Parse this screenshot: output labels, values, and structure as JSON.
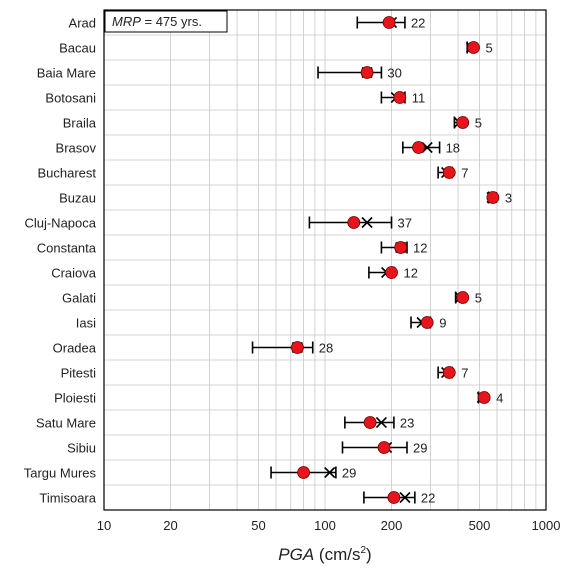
{
  "chart_data": {
    "type": "scatter",
    "annotation": {
      "italic": "MRP",
      "rest": " = 475 yrs."
    },
    "xlabel": {
      "italic": "PGA",
      "rest": " (cm/s",
      "sup": "2",
      "close": ")"
    },
    "xscale": "log",
    "xlim": [
      10,
      1000
    ],
    "x_ticks": [
      10,
      20,
      50,
      100,
      200,
      500,
      1000
    ],
    "grid": true,
    "marker_color": "#e8141c",
    "cities": [
      {
        "name": "Arad",
        "circle": 195,
        "cross": 200,
        "lo": 140,
        "hi": 230,
        "label": "22"
      },
      {
        "name": "Bacau",
        "circle": 470,
        "cross": 460,
        "lo": 440,
        "hi": 475,
        "label": "5"
      },
      {
        "name": "Baia Mare",
        "circle": 155,
        "cross": 155,
        "lo": 93,
        "hi": 180,
        "label": "30"
      },
      {
        "name": "Botosani",
        "circle": 218,
        "cross": 210,
        "lo": 180,
        "hi": 230,
        "label": "11"
      },
      {
        "name": "Braila",
        "circle": 420,
        "cross": 405,
        "lo": 385,
        "hi": 430,
        "label": "5"
      },
      {
        "name": "Brasov",
        "circle": 265,
        "cross": 290,
        "lo": 225,
        "hi": 330,
        "label": "18"
      },
      {
        "name": "Bucharest",
        "circle": 365,
        "cross": 355,
        "lo": 325,
        "hi": 375,
        "label": "7"
      },
      {
        "name": "Buzau",
        "circle": 575,
        "cross": 570,
        "lo": 550,
        "hi": 585,
        "label": "3"
      },
      {
        "name": "Cluj-Napoca",
        "circle": 135,
        "cross": 155,
        "lo": 85,
        "hi": 200,
        "label": "37"
      },
      {
        "name": "Constanta",
        "circle": 220,
        "cross": 220,
        "lo": 180,
        "hi": 235,
        "label": "12"
      },
      {
        "name": "Craiova",
        "circle": 200,
        "cross": 190,
        "lo": 158,
        "hi": 205,
        "label": "12"
      },
      {
        "name": "Galati",
        "circle": 420,
        "cross": 410,
        "lo": 390,
        "hi": 430,
        "label": "5"
      },
      {
        "name": "Iasi",
        "circle": 290,
        "cross": 275,
        "lo": 245,
        "hi": 300,
        "label": "9"
      },
      {
        "name": "Oradea",
        "circle": 75,
        "cross": 75,
        "lo": 47,
        "hi": 88,
        "label": "28"
      },
      {
        "name": "Pitesti",
        "circle": 365,
        "cross": 355,
        "lo": 325,
        "hi": 375,
        "label": "7"
      },
      {
        "name": "Ploiesti",
        "circle": 525,
        "cross": 515,
        "lo": 495,
        "hi": 535,
        "label": "4"
      },
      {
        "name": "Satu Mare",
        "circle": 160,
        "cross": 180,
        "lo": 123,
        "hi": 205,
        "label": "23"
      },
      {
        "name": "Sibiu",
        "circle": 185,
        "cross": 190,
        "lo": 120,
        "hi": 235,
        "label": "29"
      },
      {
        "name": "Targu Mures",
        "circle": 80,
        "cross": 105,
        "lo": 57,
        "hi": 112,
        "label": "29"
      },
      {
        "name": "Timisoara",
        "circle": 205,
        "cross": 230,
        "lo": 150,
        "hi": 255,
        "label": "22"
      }
    ]
  }
}
